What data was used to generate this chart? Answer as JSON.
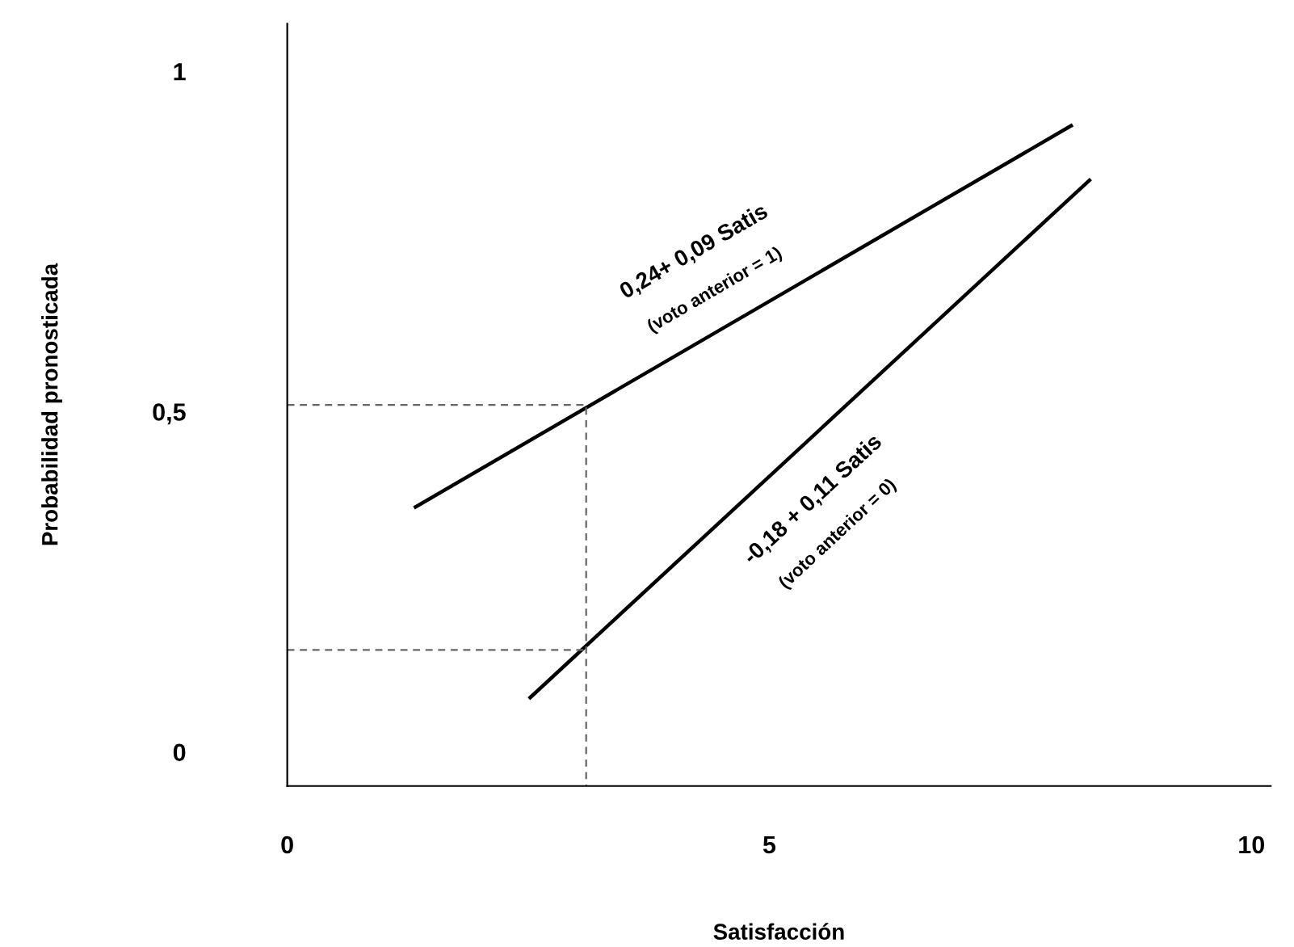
{
  "chart_data": {
    "type": "line",
    "xlabel": "Satisfacción",
    "ylabel": "Probabilidad pronosticada",
    "xlim": [
      0,
      10.2
    ],
    "ylim": [
      -0.05,
      1.07
    ],
    "xticks": [
      0,
      5,
      10
    ],
    "yticks": [
      0,
      {
        "value": 0.5,
        "label": "0,5"
      },
      1
    ],
    "grid": false,
    "legend": false,
    "marker": "none",
    "series": [
      {
        "color": "#000000",
        "x": [
          1.33,
          8.13
        ],
        "values": [
          0.36,
          0.92
        ],
        "line_style": "solid"
      },
      {
        "color": "#000000",
        "x": [
          2.52,
          8.32
        ],
        "values": [
          0.08,
          0.84
        ],
        "line_style": "solid"
      },
      {
        "color": "#666666",
        "x": [
          0,
          3.1,
          3.1
        ],
        "values": [
          0.51,
          0.51,
          -0.05
        ],
        "line_style": "dashed"
      },
      {
        "color": "#666666",
        "x": [
          0,
          3.1
        ],
        "values": [
          0.15,
          0.15
        ],
        "line_style": "dashed"
      }
    ],
    "annotations": [
      "0,24+ 0,09 Satis",
      "(voto anterior = 1)",
      "-0,18 + 0,11 Satis",
      "(voto anterior = 0)"
    ]
  }
}
